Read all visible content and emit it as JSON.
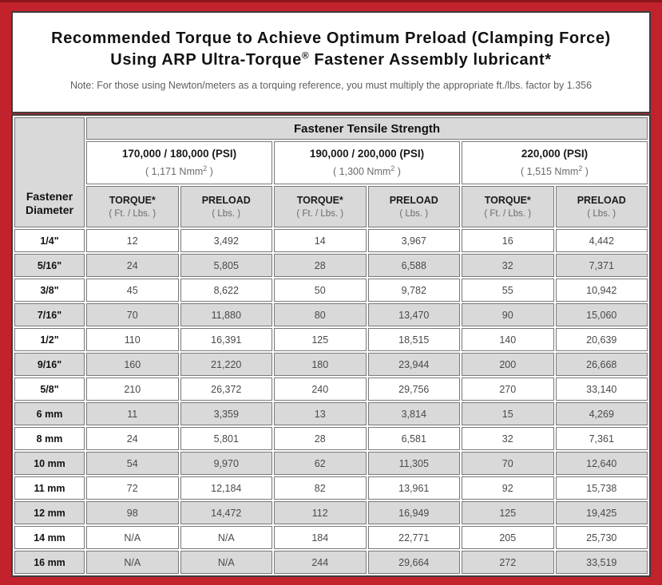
{
  "colors": {
    "frame_red": "#C1222B",
    "frame_red_dark": "#8E161D",
    "cell_gray": "#D9D9D9"
  },
  "header": {
    "title_line1": "Recommended Torque to Achieve Optimum Preload (Clamping Force)",
    "title_line2_before_reg": "Using ARP Ultra-Torque",
    "registered_mark": "®",
    "title_line2_after_reg": " Fastener Assembly lubricant*",
    "note": "Note: For those using Newton/meters as a torquing reference, you must multiply the appropriate ft./lbs. factor by 1.356"
  },
  "table": {
    "corner_label_line1": "Fastener",
    "corner_label_line2": "Diameter",
    "tensile_strength_header": "Fastener Tensile Strength",
    "strength_groups": [
      {
        "psi": "170,000 / 180,000 (PSI)",
        "nmm_base": "( 1,171 Nmm",
        "nmm_sup": "2",
        "nmm_close": " )"
      },
      {
        "psi": "190,000 / 200,000 (PSI)",
        "nmm_base": "( 1,300 Nmm",
        "nmm_sup": "2",
        "nmm_close": " )"
      },
      {
        "psi": "220,000 (PSI)",
        "nmm_base": "( 1,515 Nmm",
        "nmm_sup": "2",
        "nmm_close": " )"
      }
    ],
    "sub_headers": {
      "torque_label": "TORQUE*",
      "torque_unit": "( Ft. / Lbs. )",
      "preload_label": "PRELOAD",
      "preload_unit": "( Lbs. )"
    },
    "rows": [
      {
        "diameter": "1/4\"",
        "values": [
          "12",
          "3,492",
          "14",
          "3,967",
          "16",
          "4,442"
        ]
      },
      {
        "diameter": "5/16\"",
        "values": [
          "24",
          "5,805",
          "28",
          "6,588",
          "32",
          "7,371"
        ]
      },
      {
        "diameter": "3/8\"",
        "values": [
          "45",
          "8,622",
          "50",
          "9,782",
          "55",
          "10,942"
        ]
      },
      {
        "diameter": "7/16\"",
        "values": [
          "70",
          "11,880",
          "80",
          "13,470",
          "90",
          "15,060"
        ]
      },
      {
        "diameter": "1/2\"",
        "values": [
          "110",
          "16,391",
          "125",
          "18,515",
          "140",
          "20,639"
        ]
      },
      {
        "diameter": "9/16\"",
        "values": [
          "160",
          "21,220",
          "180",
          "23,944",
          "200",
          "26,668"
        ]
      },
      {
        "diameter": "5/8\"",
        "values": [
          "210",
          "26,372",
          "240",
          "29,756",
          "270",
          "33,140"
        ]
      },
      {
        "diameter": "6 mm",
        "values": [
          "11",
          "3,359",
          "13",
          "3,814",
          "15",
          "4,269"
        ]
      },
      {
        "diameter": "8 mm",
        "values": [
          "24",
          "5,801",
          "28",
          "6,581",
          "32",
          "7,361"
        ]
      },
      {
        "diameter": "10 mm",
        "values": [
          "54",
          "9,970",
          "62",
          "11,305",
          "70",
          "12,640"
        ]
      },
      {
        "diameter": "11 mm",
        "values": [
          "72",
          "12,184",
          "82",
          "13,961",
          "92",
          "15,738"
        ]
      },
      {
        "diameter": "12 mm",
        "values": [
          "98",
          "14,472",
          "112",
          "16,949",
          "125",
          "19,425"
        ]
      },
      {
        "diameter": "14 mm",
        "values": [
          "N/A",
          "N/A",
          "184",
          "22,771",
          "205",
          "25,730"
        ]
      },
      {
        "diameter": "16 mm",
        "values": [
          "N/A",
          "N/A",
          "244",
          "29,664",
          "272",
          "33,519"
        ]
      }
    ]
  }
}
